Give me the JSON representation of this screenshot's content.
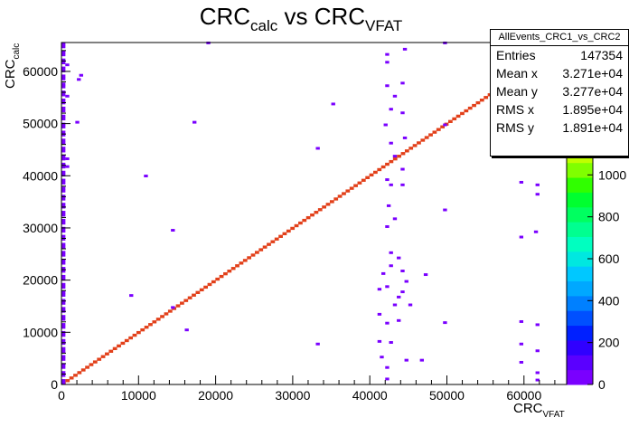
{
  "chart_data": {
    "type": "heatmap",
    "title": "CRC_calc vs CRC_VFAT",
    "title_parts": {
      "main1": "CRC",
      "sub1": "calc",
      "mid": " vs CRC",
      "sub2": "VFAT"
    },
    "xlabel": "CRC_VFAT",
    "xlabel_parts": {
      "main": "CRC",
      "sub": "VFAT"
    },
    "ylabel": "CRC_calc",
    "ylabel_parts": {
      "main": "CRC",
      "sub": "calc"
    },
    "xlim": [
      0,
      65535
    ],
    "ylim": [
      0,
      65535
    ],
    "xticks": [
      0,
      10000,
      20000,
      30000,
      40000,
      50000,
      60000
    ],
    "yticks": [
      0,
      10000,
      20000,
      30000,
      40000,
      50000,
      60000
    ],
    "zticks": [
      0,
      200,
      400,
      600,
      800,
      1000
    ],
    "zlim": [
      0,
      1200
    ],
    "diagonal": {
      "from": 0,
      "to": 65535,
      "approx_count": 1100
    },
    "sparse_cells": [
      [
        18800,
        65200
      ],
      [
        49500,
        65200
      ],
      [
        42000,
        63000
      ],
      [
        44300,
        64000
      ],
      [
        42000,
        61500
      ],
      [
        500,
        61000
      ],
      [
        2300,
        59000
      ],
      [
        42000,
        57000
      ],
      [
        44000,
        57500
      ],
      [
        500,
        55000
      ],
      [
        2000,
        58200
      ],
      [
        43000,
        55000
      ],
      [
        35000,
        53500
      ],
      [
        42500,
        52500
      ],
      [
        44000,
        51800
      ],
      [
        1800,
        50000
      ],
      [
        17000,
        50000
      ],
      [
        49500,
        49500
      ],
      [
        41800,
        49500
      ],
      [
        44300,
        47000
      ],
      [
        42500,
        46000
      ],
      [
        33000,
        45000
      ],
      [
        500,
        43000
      ],
      [
        43000,
        43500
      ],
      [
        500,
        41500
      ],
      [
        44000,
        41000
      ],
      [
        10700,
        39700
      ],
      [
        42000,
        39000
      ],
      [
        44000,
        38000
      ],
      [
        59400,
        38500
      ],
      [
        42500,
        38000
      ],
      [
        61500,
        38000
      ],
      [
        61500,
        36200
      ],
      [
        42200,
        34000
      ],
      [
        49500,
        33200
      ],
      [
        43000,
        31500
      ],
      [
        14200,
        29300
      ],
      [
        42000,
        30000
      ],
      [
        61300,
        29000
      ],
      [
        59400,
        28000
      ],
      [
        42500,
        25000
      ],
      [
        43500,
        24000
      ],
      [
        42500,
        22500
      ],
      [
        44000,
        21500
      ],
      [
        41500,
        21000
      ],
      [
        47000,
        20800
      ],
      [
        44500,
        19500
      ],
      [
        42000,
        18500
      ],
      [
        41000,
        18000
      ],
      [
        44000,
        17500
      ],
      [
        43500,
        16500
      ],
      [
        8800,
        16800
      ],
      [
        43000,
        15000
      ],
      [
        14200,
        14500
      ],
      [
        45000,
        15000
      ],
      [
        41000,
        13200
      ],
      [
        43500,
        12000
      ],
      [
        42000,
        11500
      ],
      [
        49500,
        11600
      ],
      [
        59400,
        11800
      ],
      [
        61500,
        11200
      ],
      [
        16000,
        10200
      ],
      [
        41000,
        8000
      ],
      [
        42500,
        7800
      ],
      [
        33000,
        7500
      ],
      [
        59400,
        7500
      ],
      [
        61500,
        6200
      ],
      [
        41300,
        5000
      ],
      [
        44500,
        4400
      ],
      [
        46500,
        4400
      ],
      [
        59400,
        4000
      ],
      [
        42000,
        3000
      ],
      [
        61500,
        2000
      ],
      [
        42000,
        800
      ],
      [
        61500,
        600
      ]
    ],
    "left_column_x": 500,
    "stats": {
      "name": "AllEvents_CRC1_vs_CRC2",
      "rows": [
        {
          "label": "Entries",
          "value": "147354"
        },
        {
          "label": "Mean x",
          "value": "3.271e+04"
        },
        {
          "label": "Mean y",
          "value": "3.277e+04"
        },
        {
          "label": "RMS x",
          "value": "1.895e+04"
        },
        {
          "label": "RMS y",
          "value": "1.891e+04"
        }
      ]
    }
  }
}
